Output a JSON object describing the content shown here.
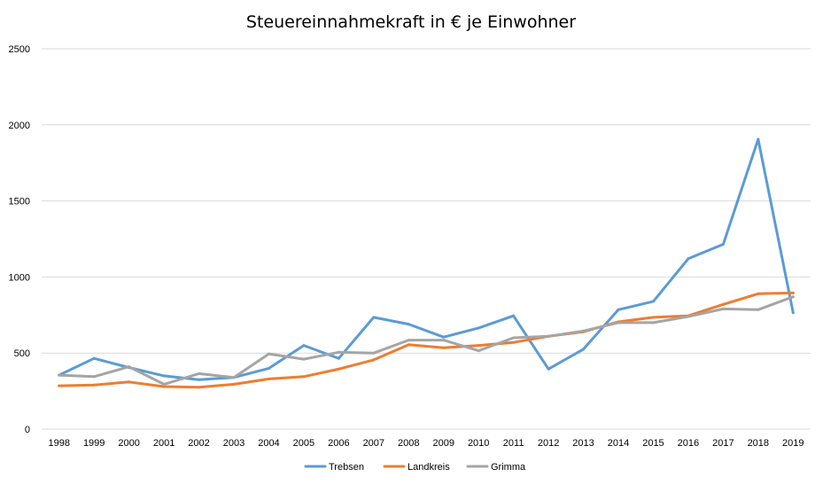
{
  "chart_data": {
    "type": "line",
    "title": "Steuereinnahmekraft in € je Einwohner",
    "xlabel": "",
    "ylabel": "",
    "ylim": [
      0,
      2500
    ],
    "yticks": [
      "0",
      "500",
      "1000",
      "1500",
      "2000",
      "2500"
    ],
    "grid": true,
    "legend_position": "bottom",
    "categories": [
      "1998",
      "1999",
      "2000",
      "2001",
      "2002",
      "2003",
      "2004",
      "2005",
      "2006",
      "2007",
      "2008",
      "2009",
      "2010",
      "2011",
      "2012",
      "2013",
      "2014",
      "2015",
      "2016",
      "2017",
      "2018",
      "2019"
    ],
    "series": [
      {
        "name": "Trebsen",
        "color": "#5b9bd5",
        "values": [
          355,
          465,
          405,
          350,
          325,
          340,
          400,
          550,
          465,
          735,
          690,
          605,
          665,
          745,
          395,
          525,
          785,
          840,
          1120,
          1215,
          1905,
          765
        ]
      },
      {
        "name": "Landkreis",
        "color": "#ed7d31",
        "values": [
          285,
          290,
          310,
          280,
          275,
          295,
          330,
          345,
          395,
          455,
          555,
          535,
          550,
          570,
          610,
          640,
          705,
          735,
          745,
          820,
          890,
          895
        ]
      },
      {
        "name": "Grimma",
        "color": "#a5a5a5",
        "values": [
          355,
          345,
          410,
          295,
          365,
          340,
          495,
          460,
          505,
          500,
          585,
          585,
          515,
          600,
          610,
          645,
          700,
          700,
          740,
          790,
          785,
          870
        ]
      }
    ]
  }
}
